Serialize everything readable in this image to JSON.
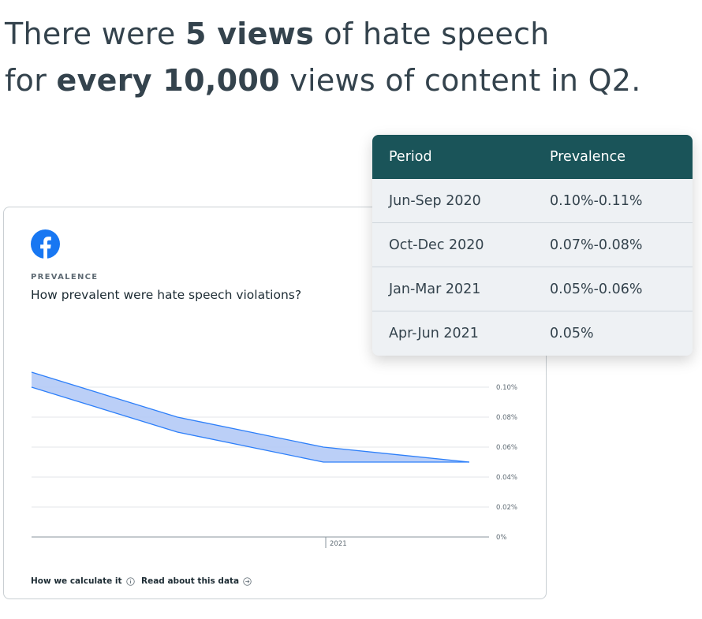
{
  "headline": {
    "line1_pre": "There were ",
    "line1_bold": "5 views",
    "line1_post": " of hate speech",
    "line2_pre": "for ",
    "line2_bold": "every 10,000",
    "line2_post": " views of content in Q2."
  },
  "card": {
    "icon": "facebook-icon",
    "eyebrow": "PREVALENCE",
    "question": "How prevalent were hate speech violations?",
    "links": [
      {
        "label": "How we calculate it",
        "icon": "info-icon"
      },
      {
        "label": "Read about this data",
        "icon": "arrow-right-circle-icon"
      }
    ]
  },
  "chart_data": {
    "type": "area",
    "x": [
      "Jun-Sep 2020",
      "Oct-Dec 2020",
      "Jan-Mar 2021",
      "Apr-Jun 2021"
    ],
    "series": [
      {
        "values_low": [
          0.1,
          0.07,
          0.05,
          0.05
        ],
        "values_high": [
          0.11,
          0.08,
          0.06,
          0.05
        ]
      }
    ],
    "y_ticks": [
      "0.10%",
      "0.08%",
      "0.06%",
      "0.04%",
      "0.02%",
      "0%"
    ],
    "ylim": [
      0,
      0.1
    ],
    "x_tick_labels": [
      "2021"
    ],
    "grid": true,
    "colors": {
      "fill": "#b7ccf7",
      "line": "#2d7ff9",
      "grid": "#e3e6e9",
      "axis": "#8a959c"
    }
  },
  "table": {
    "headers": [
      "Period",
      "Prevalence"
    ],
    "rows": [
      [
        "Jun-Sep 2020",
        "0.10%-0.11%"
      ],
      [
        "Oct-Dec 2020",
        "0.07%-0.08%"
      ],
      [
        "Jan-Mar 2021",
        "0.05%-0.06%"
      ],
      [
        "Apr-Jun 2021",
        "0.05%"
      ]
    ],
    "header_color": "#1a5459"
  },
  "colors": {
    "brand": "#1877f2",
    "text": "#34434d"
  }
}
